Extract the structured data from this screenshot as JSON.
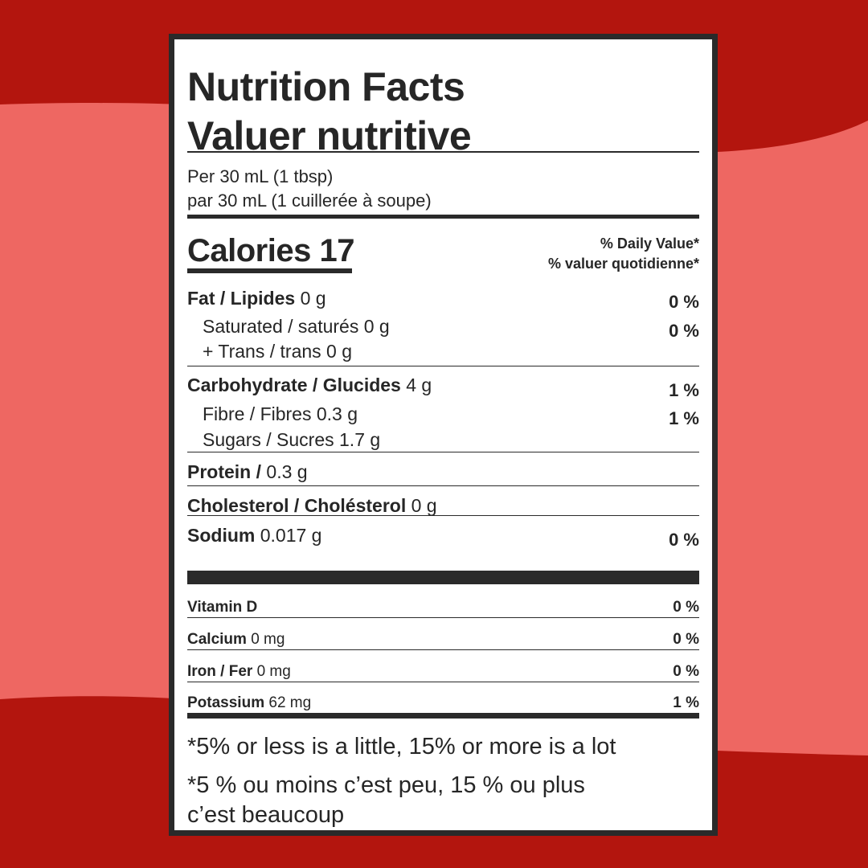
{
  "colors": {
    "background_dark": "#b3150e",
    "background_band": "#ee6762",
    "label_border": "#2a2a2a",
    "text": "#262626"
  },
  "title": {
    "en": "Nutrition Facts",
    "fr": "Valuer nutritive"
  },
  "serving": {
    "en": "Per 30 mL (1 tbsp)",
    "fr": "par 30 mL (1 cuillerée à soupe)"
  },
  "calories": {
    "label": "Calories 17"
  },
  "daily_value_header": {
    "en": "% Daily Value*",
    "fr": "% valuer quotidienne*"
  },
  "nutrients": [
    {
      "name": "Fat / Lipides",
      "amount": "0 g",
      "dv": "0 %"
    },
    {
      "name": "Saturated / saturés 0 g",
      "dv": "0 %"
    },
    {
      "name": "+ Trans / trans 0 g"
    },
    {
      "name": "Carbohydrate / Glucides",
      "amount": "4 g",
      "dv": "1 %"
    },
    {
      "name": "Fibre / Fibres 0.3 g",
      "dv": "1 %"
    },
    {
      "name": "Sugars / Sucres 1.7 g"
    },
    {
      "name": "Protein /",
      "amount": "0.3 g"
    },
    {
      "name": "Cholesterol / Cholésterol",
      "amount": "0 g"
    },
    {
      "name": "Sodium",
      "amount": "0.017 g",
      "dv": "0 %"
    }
  ],
  "minerals": [
    {
      "name": "Vitamin D",
      "amount": "",
      "dv": "0 %"
    },
    {
      "name": "Calcium",
      "amount": "0 mg",
      "dv": "0 %"
    },
    {
      "name": "Iron / Fer",
      "amount": "0 mg",
      "dv": "0 %"
    },
    {
      "name": "Potassium",
      "amount": "62 mg",
      "dv": "1 %"
    }
  ],
  "footnote": {
    "en": "*5% or less is a little, 15% or more is a lot",
    "fr_line1": "*5 % ou moins c’est peu, 15 % ou plus",
    "fr_line2": "c’est beaucoup"
  }
}
